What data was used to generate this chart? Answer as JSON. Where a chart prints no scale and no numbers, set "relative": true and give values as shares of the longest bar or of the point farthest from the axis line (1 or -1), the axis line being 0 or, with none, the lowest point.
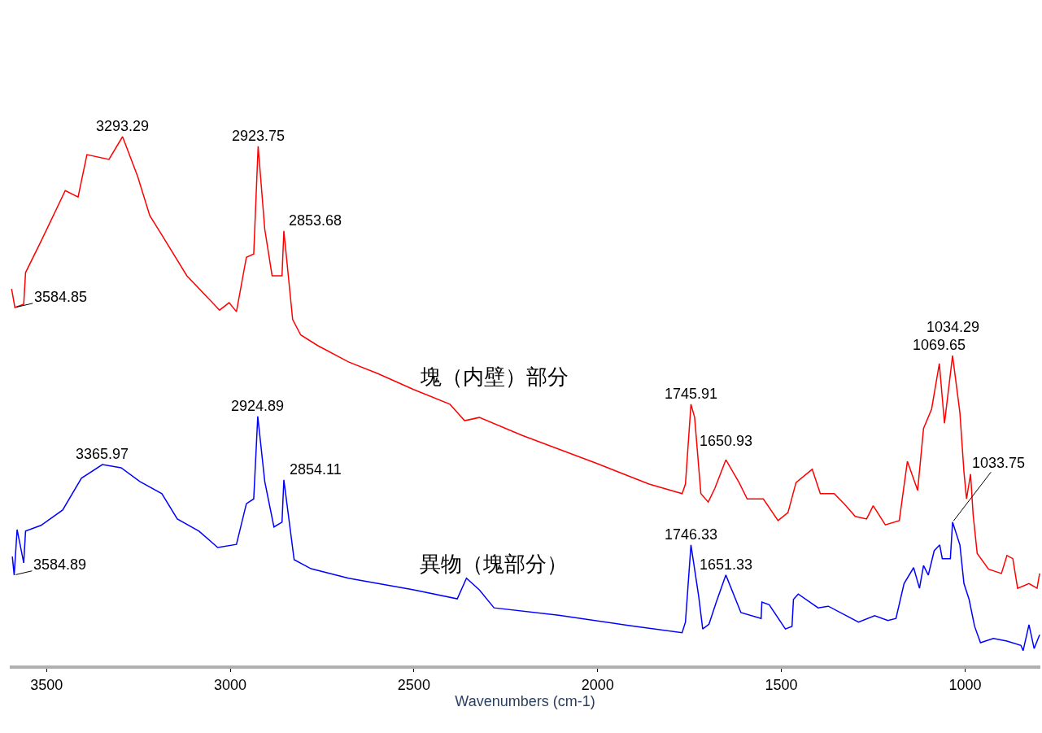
{
  "chart_data": {
    "type": "line",
    "relative": true,
    "xlabel": "Wavenumbers (cm-1)",
    "xlim": [
      3600,
      795
    ],
    "xticks": [
      3500,
      3000,
      2500,
      2000,
      1500,
      1000
    ],
    "series": [
      {
        "name": "塊（内壁）部分",
        "color": "#ff0000",
        "x": [
          3595,
          3586,
          3562,
          3557,
          3515,
          3449,
          3414,
          3390,
          3330,
          3293,
          3252,
          3219,
          3186,
          3118,
          3029,
          3003,
          2983,
          2956,
          2936,
          2924,
          2906,
          2886,
          2859,
          2854,
          2830,
          2808,
          2762,
          2678,
          2598,
          2501,
          2402,
          2362,
          2322,
          2205,
          2006,
          1860,
          1770,
          1761,
          1746,
          1736,
          1719,
          1699,
          1681,
          1651,
          1615,
          1593,
          1549,
          1509,
          1482,
          1460,
          1416,
          1394,
          1356,
          1328,
          1299,
          1268,
          1250,
          1217,
          1179,
          1157,
          1129,
          1113,
          1091,
          1070,
          1056,
          1034,
          1014,
          1003,
          996,
          985,
          978,
          967,
          936,
          901,
          886,
          870,
          857,
          826,
          804,
          797
        ],
        "values": [
          0.712,
          0.677,
          0.683,
          0.743,
          0.802,
          0.898,
          0.886,
          0.966,
          0.957,
          1,
          0.925,
          0.851,
          0.814,
          0.737,
          0.672,
          0.686,
          0.669,
          0.772,
          0.778,
          0.982,
          0.825,
          0.737,
          0.737,
          0.822,
          0.654,
          0.625,
          0.605,
          0.574,
          0.552,
          0.522,
          0.494,
          0.463,
          0.469,
          0.435,
          0.383,
          0.343,
          0.325,
          0.343,
          0.494,
          0.469,
          0.325,
          0.309,
          0.335,
          0.389,
          0.346,
          0.315,
          0.315,
          0.274,
          0.289,
          0.346,
          0.371,
          0.325,
          0.325,
          0.305,
          0.282,
          0.277,
          0.302,
          0.266,
          0.274,
          0.386,
          0.331,
          0.448,
          0.485,
          0.571,
          0.458,
          0.586,
          0.478,
          0.366,
          0.315,
          0.362,
          0.285,
          0.212,
          0.182,
          0.174,
          0.208,
          0.202,
          0.146,
          0.155,
          0.146,
          0.174
        ]
      },
      {
        "name": "異物（塊部分）",
        "color": "#0000ff",
        "x": [
          3593,
          3588,
          3580,
          3562,
          3557,
          3515,
          3456,
          3405,
          3348,
          3297,
          3246,
          3186,
          3144,
          3085,
          3034,
          2983,
          2956,
          2936,
          2925,
          2906,
          2881,
          2859,
          2854,
          2826,
          2780,
          2678,
          2501,
          2382,
          2357,
          2322,
          2282,
          2106,
          1909,
          1770,
          1761,
          1746,
          1725,
          1714,
          1697,
          1677,
          1651,
          1610,
          1555,
          1553,
          1533,
          1489,
          1471,
          1467,
          1454,
          1400,
          1372,
          1290,
          1246,
          1210,
          1188,
          1166,
          1140,
          1124,
          1113,
          1100,
          1084,
          1069,
          1062,
          1040,
          1034,
          1014,
          1003,
          989,
          974,
          958,
          923,
          886,
          848,
          842,
          826,
          812,
          797
        ],
        "values": [
          0.206,
          0.171,
          0.257,
          0.194,
          0.254,
          0.265,
          0.294,
          0.354,
          0.38,
          0.374,
          0.348,
          0.325,
          0.277,
          0.254,
          0.223,
          0.229,
          0.306,
          0.315,
          0.471,
          0.348,
          0.262,
          0.271,
          0.351,
          0.2,
          0.183,
          0.165,
          0.143,
          0.126,
          0.165,
          0.143,
          0.109,
          0.095,
          0.075,
          0.062,
          0.082,
          0.228,
          0.131,
          0.069,
          0.078,
          0.12,
          0.171,
          0.1,
          0.089,
          0.12,
          0.115,
          0.069,
          0.074,
          0.125,
          0.135,
          0.109,
          0.112,
          0.082,
          0.094,
          0.085,
          0.089,
          0.155,
          0.185,
          0.146,
          0.189,
          0.171,
          0.217,
          0.228,
          0.202,
          0.202,
          0.271,
          0.228,
          0.155,
          0.125,
          0.074,
          0.043,
          0.051,
          0.046,
          0.038,
          0.028,
          0.077,
          0.032,
          0.058
        ]
      }
    ],
    "annotations": [
      {
        "text": "3584.85",
        "x": 3586,
        "y": 0.677
      },
      {
        "text": "3293.29",
        "x": 3293,
        "y": 1
      },
      {
        "text": "2923.75",
        "x": 2924,
        "y": 0.982
      },
      {
        "text": "2853.68",
        "x": 2854,
        "y": 0.822
      },
      {
        "text": "1745.91",
        "x": 1746,
        "y": 0.494
      },
      {
        "text": "1650.93",
        "x": 1651,
        "y": 0.389
      },
      {
        "text": "1069.65",
        "x": 1070,
        "y": 0.571
      },
      {
        "text": "1034.29",
        "x": 1034,
        "y": 0.586
      },
      {
        "text": "3584.89",
        "x": 3588,
        "y": 0.171
      },
      {
        "text": "3365.97",
        "x": 3348,
        "y": 0.38
      },
      {
        "text": "2924.89",
        "x": 2925,
        "y": 0.471
      },
      {
        "text": "2854.11",
        "x": 2854,
        "y": 0.351
      },
      {
        "text": "1746.33",
        "x": 1746,
        "y": 0.228
      },
      {
        "text": "1651.33",
        "x": 1651,
        "y": 0.171
      },
      {
        "text": "1033.75",
        "x": 1034,
        "y": 0.271
      }
    ]
  }
}
